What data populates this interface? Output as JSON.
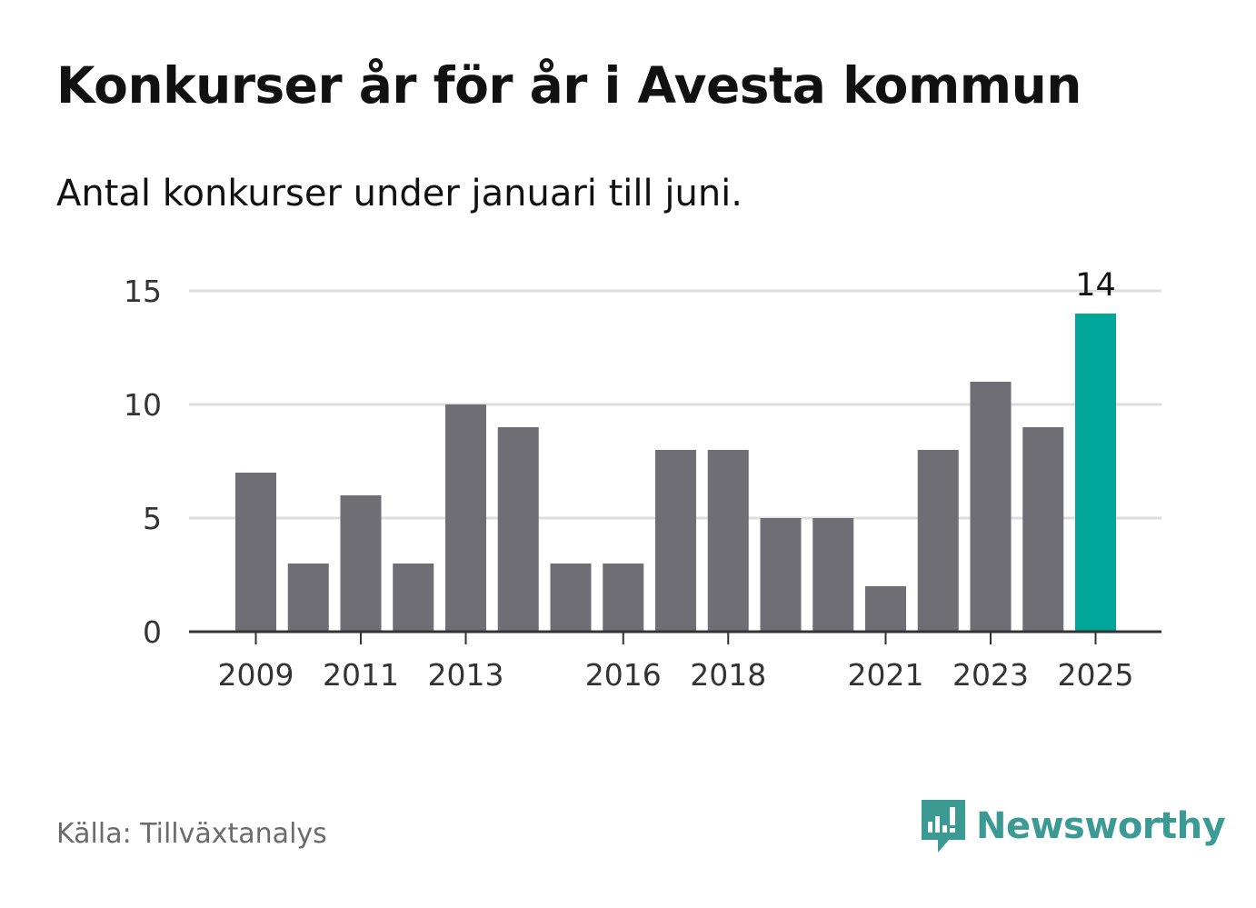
{
  "header": {
    "title": "Konkurser år för år i Avesta kommun",
    "subtitle": "Antal konkurser under januari till juni."
  },
  "footer": {
    "source": "Källa: Tillväxtanalys",
    "brand": "Newsworthy",
    "brand_icon": "newsworthy-logo-icon"
  },
  "colors": {
    "bar": "#6f6e74",
    "highlight": "#00a69a",
    "grid": "#dddddd",
    "axis": "#333333",
    "brand": "#3c9a94"
  },
  "chart_data": {
    "type": "bar",
    "categories": [
      "2009",
      "2010",
      "2011",
      "2012",
      "2013",
      "2014",
      "2015",
      "2016",
      "2017",
      "2018",
      "2019",
      "2020",
      "2021",
      "2022",
      "2023",
      "2024",
      "2025"
    ],
    "values": [
      7,
      3,
      6,
      3,
      10,
      9,
      3,
      3,
      8,
      8,
      5,
      5,
      2,
      8,
      11,
      9,
      14
    ],
    "xticks": [
      "2009",
      "2011",
      "2013",
      "2016",
      "2018",
      "2021",
      "2023",
      "2025"
    ],
    "yticks": [
      0,
      5,
      10,
      15
    ],
    "ylim": [
      0,
      15
    ],
    "grid": true,
    "highlight_category": "2025",
    "data_labels": [
      {
        "category": "2025",
        "text": "14"
      }
    ]
  }
}
